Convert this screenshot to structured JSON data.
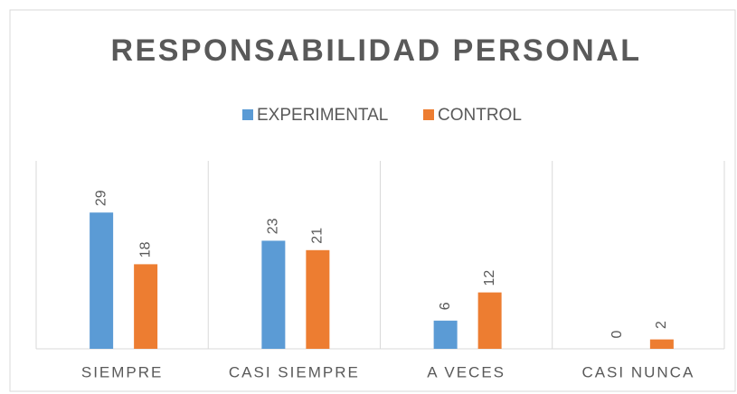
{
  "chart_data": {
    "type": "bar",
    "title": "RESPONSABILIDAD PERSONAL",
    "categories": [
      "SIEMPRE",
      "CASI SIEMPRE",
      "A VECES",
      "CASI NUNCA"
    ],
    "series": [
      {
        "name": "EXPERIMENTAL",
        "color": "#5b9bd5",
        "values": [
          29,
          23,
          6,
          0
        ]
      },
      {
        "name": "CONTROL",
        "color": "#ed7d31",
        "values": [
          18,
          21,
          12,
          2
        ]
      }
    ],
    "ylim": [
      0,
      40
    ],
    "legend": "top"
  }
}
